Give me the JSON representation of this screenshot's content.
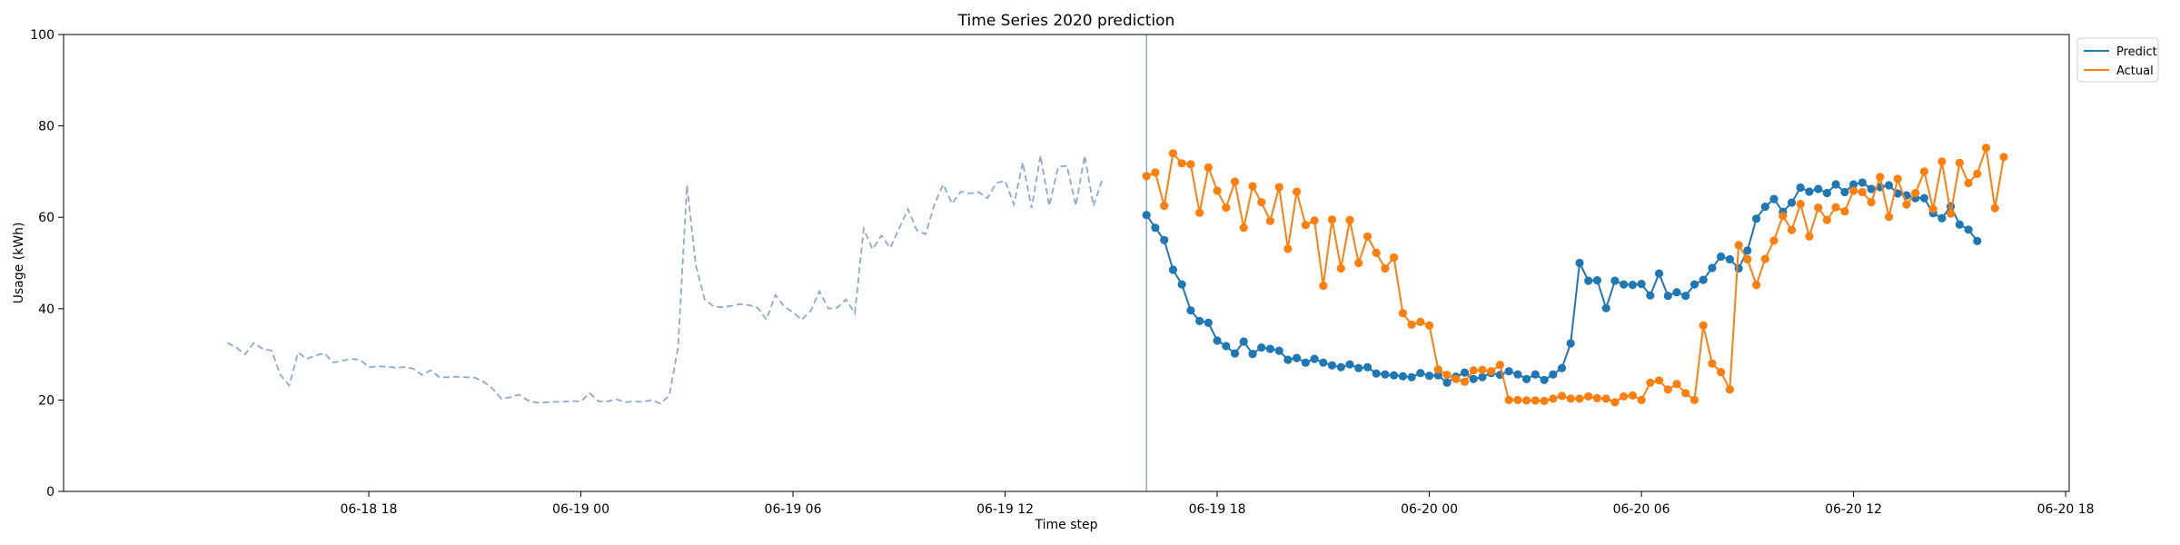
{
  "chart_data": {
    "type": "line",
    "title": "Time Series 2020 prediction",
    "xlabel": "Time step",
    "ylabel": "Usage (kWh)",
    "ylim": [
      0,
      100
    ],
    "yticks": [
      0,
      20,
      40,
      60,
      80,
      100
    ],
    "xlim": [
      "2020-06-18 09:22",
      "2020-06-20 18:06"
    ],
    "xticks": [
      {
        "value": "2020-06-18 18:00",
        "label": "06-18 18"
      },
      {
        "value": "2020-06-19 00:00",
        "label": "06-19 00"
      },
      {
        "value": "2020-06-19 06:00",
        "label": "06-19 06"
      },
      {
        "value": "2020-06-19 12:00",
        "label": "06-19 12"
      },
      {
        "value": "2020-06-19 18:00",
        "label": "06-19 18"
      },
      {
        "value": "2020-06-20 00:00",
        "label": "06-20 00"
      },
      {
        "value": "2020-06-20 06:00",
        "label": "06-20 06"
      },
      {
        "value": "2020-06-20 12:00",
        "label": "06-20 12"
      },
      {
        "value": "2020-06-20 18:00",
        "label": "06-20 18"
      }
    ],
    "vline": "2020-06-19 16:00",
    "grid": false,
    "legend_position": "upper-right-outside",
    "history": {
      "style": "dashed",
      "color": "#8fa8cc",
      "start": "2020-06-18 14:00",
      "step_minutes": 15,
      "values": [
        32.5,
        31.5,
        30,
        32.5,
        31.2,
        30.8,
        25.5,
        23.2,
        30.4,
        29,
        29.8,
        30.2,
        28.2,
        28.6,
        29,
        28.8,
        27.2,
        27.4,
        27.3,
        27.1,
        27.2,
        26.9,
        25.5,
        26.5,
        25,
        25,
        25.1,
        25,
        24.9,
        24,
        22.5,
        20.3,
        20.6,
        21.2,
        19.9,
        19.4,
        19.5,
        19.6,
        19.6,
        19.8,
        19.7,
        21.5,
        19.7,
        19.7,
        20.2,
        19.5,
        19.7,
        19.6,
        20,
        19.2,
        21,
        31.5,
        67,
        49.5,
        42,
        40.5,
        40.3,
        40.6,
        41,
        40.8,
        40.2,
        37.6,
        43,
        40.5,
        39.2,
        37.6,
        39.5,
        43.8,
        40,
        40.2,
        42,
        39,
        57.5,
        53,
        56,
        53.3,
        57.5,
        61.8,
        57.2,
        56.3,
        62.8,
        67.2,
        63,
        65.6,
        65.2,
        65.5,
        64.2,
        67.5,
        68,
        62.8,
        72,
        62,
        73.5,
        62.5,
        71,
        71.3,
        62.5,
        73.5,
        62.5,
        68.3
      ]
    },
    "series": [
      {
        "name": "Predict",
        "color": "#1f77b4",
        "start": "2020-06-19 16:00",
        "step_minutes": 15,
        "values": [
          60.5,
          57.7,
          55,
          48.5,
          45.3,
          39.6,
          37.3,
          36.9,
          33,
          31.8,
          30.2,
          32.8,
          30.1,
          31.5,
          31.2,
          30.8,
          28.8,
          29.2,
          28.2,
          29,
          28.2,
          27.6,
          27.2,
          27.8,
          27,
          27.2,
          25.8,
          25.6,
          25.4,
          25.2,
          25,
          25.9,
          25.3,
          25.4,
          23.8,
          25.1,
          26,
          24.6,
          25,
          25.9,
          25.5,
          26.3,
          25.6,
          24.6,
          25.6,
          24.4,
          25.6,
          27,
          32.4,
          50,
          46.1,
          46.2,
          40.1,
          46.1,
          45.3,
          45.2,
          45.4,
          42.9,
          47.7,
          42.8,
          43.6,
          42.8,
          45.3,
          46.3,
          48.9,
          51.4,
          50.8,
          48.8,
          52.7,
          59.7,
          62.3,
          64,
          61.2,
          63.2,
          66.5,
          65.6,
          66.2,
          65.3,
          67.2,
          65.5,
          67.2,
          67.6,
          66.2,
          66.6,
          67,
          65.2,
          64.8,
          64.2,
          64.2,
          60.9,
          59.8,
          62.4,
          58.4,
          57.3,
          54.8
        ]
      },
      {
        "name": "Actual",
        "color": "#ff7f0e",
        "start": "2020-06-19 16:00",
        "step_minutes": 15,
        "values": [
          69,
          69.8,
          62.5,
          74,
          71.8,
          71.6,
          61,
          70.9,
          65.8,
          62.1,
          67.8,
          57.7,
          66.8,
          63.3,
          59.2,
          66.6,
          53.1,
          65.6,
          58.3,
          59.3,
          45,
          59.5,
          48.8,
          59.4,
          50,
          55.8,
          52.2,
          48.8,
          51.2,
          39,
          36.5,
          37.1,
          36.3,
          26.7,
          25.5,
          24.6,
          24,
          26.5,
          26.6,
          26.3,
          27.7,
          20,
          20,
          19.9,
          19.9,
          19.8,
          20.3,
          20.9,
          20.3,
          20.3,
          20.8,
          20.4,
          20.3,
          19.5,
          20.8,
          21,
          20,
          23.8,
          24.3,
          22.3,
          23.5,
          21.5,
          20,
          36.3,
          28,
          26.1,
          22.3,
          53.9,
          50.8,
          45.2,
          50.9,
          54.9,
          60.3,
          57.2,
          62.9,
          55.8,
          62.1,
          59.4,
          62.2,
          61.3,
          65.8,
          65.5,
          63.3,
          68.8,
          60.1,
          68.4,
          62.8,
          65.3,
          70,
          61.8,
          72.2,
          60.8,
          71.9,
          67.5,
          69.5,
          75.2,
          62,
          73.2
        ]
      }
    ]
  }
}
